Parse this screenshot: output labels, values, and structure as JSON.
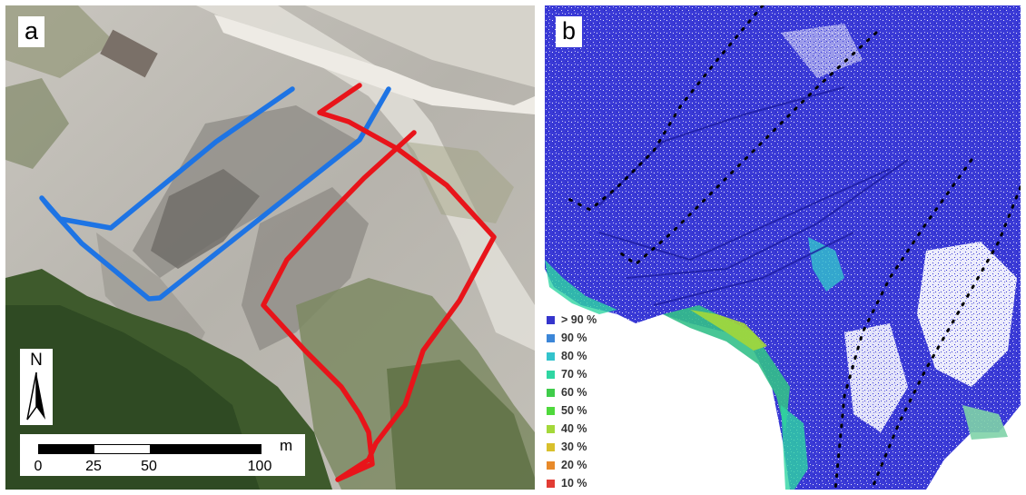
{
  "panel_a": {
    "label": "a",
    "north_label": "N",
    "scale_bar": {
      "unit": "m",
      "ticks": [
        "0",
        "25",
        "50",
        "100"
      ]
    },
    "route_colors": {
      "blue": "#1e74e4",
      "red": "#e8141a"
    }
  },
  "panel_b": {
    "label": "b",
    "legend": [
      {
        "label": "> 90 %",
        "color": "#3535cc"
      },
      {
        "label": "90 %",
        "color": "#3c86d8"
      },
      {
        "label": "80 %",
        "color": "#33c3cc"
      },
      {
        "label": "70 %",
        "color": "#2fd6a2"
      },
      {
        "label": "60 %",
        "color": "#3fcc4a"
      },
      {
        "label": "50 %",
        "color": "#4fd93c"
      },
      {
        "label": "40 %",
        "color": "#a4d83a"
      },
      {
        "label": "30 %",
        "color": "#d8c02c"
      },
      {
        "label": "20 %",
        "color": "#e88a2a"
      },
      {
        "label": "10 %",
        "color": "#e23c34"
      }
    ]
  }
}
